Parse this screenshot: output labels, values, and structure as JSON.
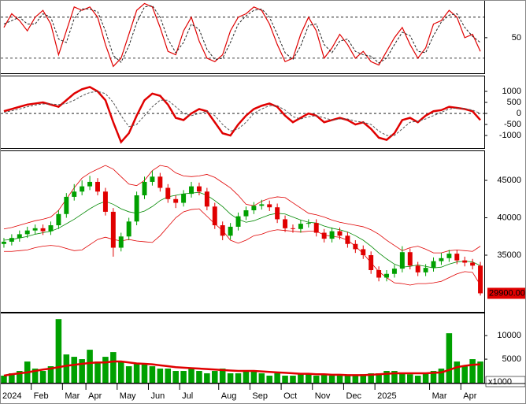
{
  "chart_data": [
    {
      "type": "line",
      "ylim": [
        -2,
        104
      ],
      "yticks": [
        50
      ],
      "levels": [
        20,
        80
      ],
      "series": [
        {
          "color": "#e00000",
          "width": 1.2,
          "dash": false,
          "values": [
            65,
            85,
            75,
            60,
            80,
            90,
            70,
            25,
            60,
            95,
            90,
            95,
            80,
            40,
            8,
            20,
            55,
            90,
            100,
            95,
            65,
            30,
            25,
            60,
            80,
            45,
            20,
            15,
            25,
            60,
            80,
            85,
            95,
            90,
            70,
            40,
            15,
            20,
            55,
            80,
            60,
            20,
            35,
            55,
            40,
            20,
            30,
            15,
            10,
            30,
            50,
            65,
            40,
            20,
            35,
            70,
            75,
            90,
            80,
            50,
            55,
            30
          ]
        },
        {
          "color": "#222222",
          "width": 1,
          "dash": true,
          "values": [
            70,
            75,
            80,
            70,
            70,
            85,
            80,
            48,
            43,
            78,
            92,
            92,
            88,
            60,
            24,
            14,
            38,
            72,
            95,
            97,
            80,
            48,
            28,
            43,
            70,
            62,
            33,
            18,
            20,
            43,
            70,
            82,
            90,
            92,
            80,
            55,
            28,
            18,
            38,
            68,
            70,
            40,
            28,
            45,
            48,
            30,
            25,
            23,
            13,
            20,
            40,
            58,
            53,
            30,
            28,
            53,
            73,
            83,
            85,
            65,
            52,
            43
          ]
        }
      ]
    },
    {
      "type": "line",
      "ylim": [
        -1570,
        1680
      ],
      "yticks": [
        1000,
        500,
        0,
        -500,
        -1000
      ],
      "levels": [
        0
      ],
      "series": [
        {
          "color": "#e00000",
          "width": 2.5,
          "dash": false,
          "values": [
            100,
            200,
            300,
            400,
            450,
            500,
            400,
            300,
            600,
            900,
            1100,
            1200,
            1000,
            600,
            -400,
            -1300,
            -900,
            -100,
            600,
            900,
            800,
            400,
            -200,
            -300,
            0,
            200,
            100,
            -400,
            -900,
            -1000,
            -500,
            -100,
            200,
            350,
            450,
            300,
            -100,
            -400,
            -200,
            0,
            -100,
            -400,
            -300,
            -200,
            -300,
            -500,
            -400,
            -700,
            -1100,
            -1200,
            -900,
            -300,
            -200,
            -400,
            -100,
            100,
            150,
            300,
            250,
            200,
            100,
            -300
          ]
        },
        {
          "color": "#555555",
          "width": 1,
          "dash": true,
          "values": [
            50,
            120,
            200,
            300,
            380,
            430,
            430,
            400,
            450,
            600,
            800,
            950,
            1000,
            900,
            500,
            -100,
            -600,
            -500,
            -100,
            300,
            600,
            600,
            300,
            0,
            -100,
            0,
            100,
            -100,
            -500,
            -800,
            -700,
            -400,
            0,
            200,
            350,
            350,
            150,
            -150,
            -250,
            -150,
            -100,
            -200,
            -300,
            -250,
            -250,
            -350,
            -400,
            -500,
            -800,
            -1000,
            -1000,
            -700,
            -400,
            -350,
            -250,
            -100,
            50,
            200,
            250,
            220,
            150,
            0
          ]
        }
      ]
    },
    {
      "type": "candlestick",
      "ylim": [
        27420,
        48900
      ],
      "yticks": [
        35000,
        40000,
        45000
      ],
      "up_color": "#00a000",
      "down_color": "#e00000",
      "open": [
        36500,
        36800,
        37300,
        37800,
        38300,
        38600,
        38200,
        39000,
        40500,
        42800,
        43500,
        44200,
        44800,
        43500,
        40800,
        36000,
        37500,
        39500,
        43000,
        44800,
        45500,
        44000,
        42500,
        42000,
        43200,
        44200,
        43500,
        41500,
        39000,
        37600,
        38800,
        40200,
        41000,
        41600,
        41800,
        41400,
        39800,
        38600,
        38500,
        39200,
        39300,
        38000,
        37200,
        38200,
        37600,
        36500,
        35800,
        35000,
        33000,
        32000,
        32500,
        33200,
        35400,
        33600,
        32700,
        33300,
        34200,
        34600,
        35200,
        34300,
        34000,
        33600
      ],
      "high": [
        37300,
        37800,
        38300,
        38800,
        39100,
        39100,
        39500,
        41000,
        43300,
        44500,
        45000,
        45600,
        45300,
        44000,
        41300,
        38000,
        40000,
        43500,
        45500,
        46300,
        46000,
        44500,
        43000,
        43700,
        44800,
        44700,
        44000,
        42000,
        39500,
        39300,
        40700,
        41500,
        42100,
        42400,
        42300,
        41900,
        40300,
        39100,
        39700,
        39800,
        39800,
        38500,
        38700,
        38700,
        38100,
        37000,
        36300,
        35500,
        33500,
        33000,
        33700,
        36200,
        35900,
        34100,
        33800,
        34700,
        35300,
        35700,
        35700,
        34800,
        34500,
        34100
      ],
      "low": [
        36000,
        36300,
        36800,
        37300,
        37800,
        37700,
        37700,
        38500,
        40000,
        42300,
        43000,
        43700,
        43000,
        40300,
        34800,
        35500,
        37000,
        39000,
        42500,
        44300,
        43500,
        42000,
        41300,
        41500,
        42700,
        43000,
        41000,
        38500,
        37000,
        37100,
        38300,
        39700,
        40500,
        41100,
        40900,
        39300,
        38100,
        38000,
        38000,
        38700,
        37500,
        36700,
        36700,
        37100,
        36000,
        35300,
        34500,
        32500,
        31500,
        31500,
        32000,
        32700,
        33100,
        32200,
        32200,
        32800,
        33700,
        34100,
        33800,
        33500,
        33100,
        29600
      ],
      "close": [
        36800,
        37300,
        37800,
        38300,
        38600,
        38200,
        39000,
        40500,
        42800,
        43500,
        44200,
        44800,
        43500,
        40800,
        36000,
        37500,
        39500,
        43000,
        44800,
        45500,
        44000,
        42500,
        42000,
        43200,
        44200,
        43500,
        41500,
        39000,
        37600,
        38800,
        40200,
        41000,
        41600,
        41800,
        41400,
        39800,
        38600,
        38500,
        39200,
        39300,
        38000,
        37200,
        38200,
        37600,
        36500,
        35800,
        35000,
        33000,
        32000,
        32500,
        33200,
        35400,
        33600,
        32700,
        33300,
        34200,
        34600,
        35200,
        34300,
        34000,
        33600,
        29900
      ],
      "series": [
        {
          "color": "#e00000",
          "width": 0.8,
          "dash": false,
          "values": [
            38500,
            38700,
            39000,
            39300,
            39600,
            39800,
            40100,
            41000,
            42500,
            44000,
            45300,
            46000,
            46500,
            47000,
            46500,
            45500,
            44500,
            44300,
            45000,
            46300,
            47000,
            46800,
            46000,
            45600,
            45500,
            45600,
            45800,
            45400,
            44700,
            44000,
            43000,
            41800,
            41600,
            42200,
            42600,
            42800,
            42700,
            42000,
            41300,
            40600,
            40400,
            40100,
            39700,
            39400,
            39200,
            39000,
            38800,
            38400,
            37800,
            37000,
            36300,
            35600,
            36000,
            36200,
            35800,
            35300,
            35300,
            35600,
            35700,
            35600,
            35500,
            36200
          ]
        },
        {
          "color": "#008800",
          "width": 0.8,
          "dash": false,
          "values": [
            37000,
            37100,
            37300,
            37500,
            37800,
            38000,
            38200,
            38600,
            39200,
            39800,
            40500,
            41200,
            41800,
            42200,
            41800,
            41200,
            40800,
            40600,
            40900,
            41500,
            42300,
            42800,
            43000,
            43200,
            43300,
            43400,
            43000,
            42300,
            41500,
            40500,
            39800,
            39400,
            39600,
            40000,
            40400,
            40600,
            40500,
            40100,
            39700,
            39400,
            39300,
            38900,
            38600,
            38400,
            38100,
            37600,
            37000,
            36200,
            35300,
            34500,
            33800,
            33400,
            33500,
            33700,
            33500,
            33300,
            33400,
            33800,
            34100,
            34200,
            34100,
            33600
          ]
        },
        {
          "color": "#e00000",
          "width": 0.8,
          "dash": false,
          "values": [
            35500,
            35500,
            35600,
            35700,
            36000,
            36200,
            36300,
            36200,
            35900,
            35600,
            35700,
            36400,
            37100,
            37400,
            37100,
            36900,
            37100,
            36900,
            36800,
            36700,
            37600,
            38800,
            40000,
            40800,
            41100,
            41200,
            40200,
            39200,
            38300,
            37000,
            36600,
            37000,
            37600,
            37800,
            38200,
            38400,
            38300,
            38200,
            38100,
            38200,
            38200,
            37700,
            37500,
            37400,
            37000,
            36200,
            35200,
            34000,
            32800,
            32000,
            31300,
            31200,
            31000,
            31200,
            31200,
            31300,
            31500,
            32000,
            32500,
            32800,
            32700,
            31000
          ]
        }
      ],
      "last_price": {
        "value": 29900,
        "label": "29900.00"
      },
      "last_price_color": "#e00000"
    },
    {
      "type": "bar",
      "ylim": [
        0,
        14700
      ],
      "yticks": [
        5000,
        10000
      ],
      "unit_label": "x1000",
      "color": "#00a000",
      "categories": [
        "2024",
        null,
        null,
        null,
        "Feb",
        null,
        null,
        null,
        "Mar",
        null,
        null,
        "Apr",
        null,
        null,
        null,
        "May",
        null,
        null,
        null,
        "Jun",
        null,
        null,
        null,
        "Jul",
        null,
        null,
        null,
        null,
        "Aug",
        null,
        null,
        null,
        "Sep",
        null,
        null,
        null,
        "Oct",
        null,
        null,
        null,
        "Nov",
        null,
        null,
        null,
        "Dec",
        null,
        null,
        null,
        "2025",
        null,
        null,
        null,
        null,
        null,
        null,
        "Mar",
        null,
        null,
        null,
        "Apr",
        null,
        null
      ],
      "values": [
        1500,
        2000,
        2500,
        4500,
        3000,
        2500,
        3500,
        13500,
        6000,
        5500,
        5000,
        7000,
        4500,
        5500,
        6500,
        4500,
        3500,
        4000,
        4000,
        3500,
        3000,
        3000,
        2500,
        2500,
        3000,
        2500,
        2000,
        2500,
        3000,
        2000,
        2000,
        2500,
        2500,
        2000,
        1500,
        2000,
        1500,
        1500,
        2000,
        1800,
        1500,
        1800,
        1500,
        1500,
        1500,
        1500,
        1800,
        2000,
        2000,
        2500,
        2500,
        2000,
        1800,
        1500,
        2000,
        2500,
        3000,
        10500,
        4500,
        3500,
        5000,
        4500
      ],
      "series": [
        {
          "color": "#e00000",
          "width": 2.5,
          "dash": false,
          "values": [
            1500,
            1800,
            2000,
            2200,
            2500,
            2800,
            3000,
            3300,
            3600,
            3800,
            4000,
            4200,
            4300,
            4300,
            4500,
            4500,
            4300,
            4100,
            4000,
            3900,
            3700,
            3500,
            3300,
            3200,
            3100,
            3000,
            2900,
            2800,
            2700,
            2600,
            2500,
            2500,
            2500,
            2400,
            2300,
            2200,
            2100,
            2000,
            1900,
            1900,
            1800,
            1800,
            1700,
            1700,
            1600,
            1600,
            1600,
            1700,
            1800,
            1900,
            2000,
            2000,
            2000,
            2000,
            2000,
            2100,
            2200,
            2700,
            3300,
            3600,
            3800,
            3900
          ]
        }
      ]
    }
  ]
}
